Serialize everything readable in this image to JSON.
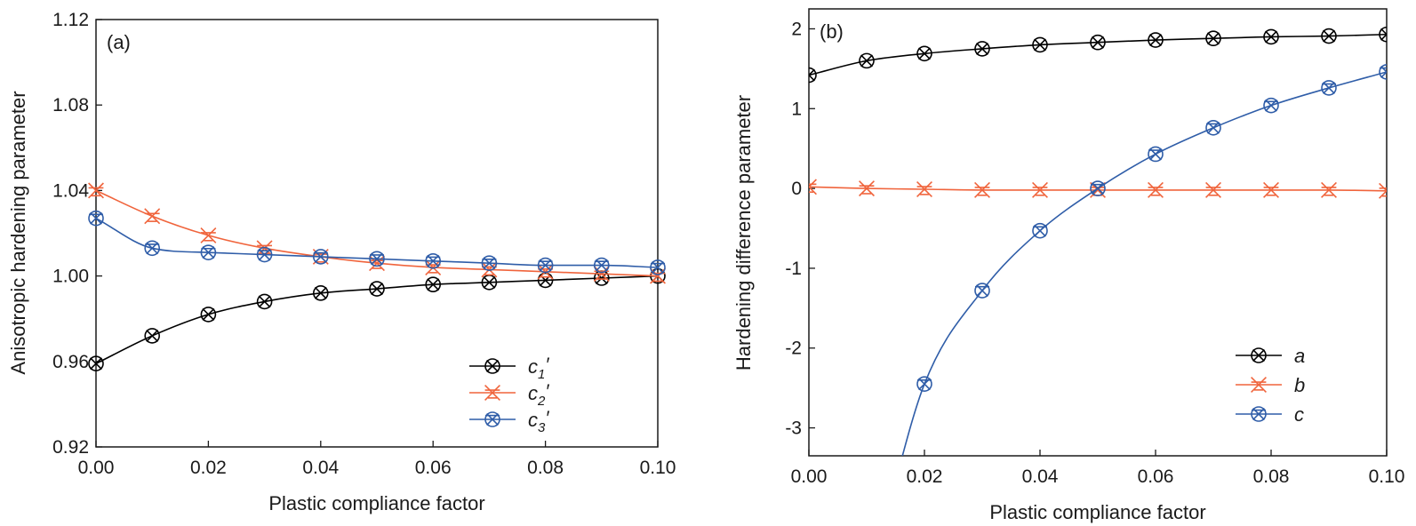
{
  "chart_data": [
    {
      "type": "line",
      "panel_label": "(a)",
      "xlabel": "Plastic compliance factor",
      "ylabel": "Anisotropic hardening parameter",
      "xlim": [
        0,
        0.1
      ],
      "ylim": [
        0.92,
        1.12
      ],
      "x_ticks": [
        "0.00",
        "0.02",
        "0.04",
        "0.06",
        "0.08",
        "0.10"
      ],
      "y_ticks": [
        "0.92",
        "0.96",
        "1.00",
        "1.04",
        "1.08",
        "1.12"
      ],
      "legend_position": "bottom-right",
      "x": [
        0.0,
        0.01,
        0.02,
        0.03,
        0.04,
        0.05,
        0.06,
        0.07,
        0.08,
        0.09,
        0.1
      ],
      "series": [
        {
          "name": "c",
          "sub": "1",
          "prime": "′",
          "color": "#000000",
          "marker": "circle-x",
          "values": [
            0.959,
            0.972,
            0.982,
            0.988,
            0.992,
            0.994,
            0.996,
            0.997,
            0.998,
            0.999,
            1.0
          ]
        },
        {
          "name": "c",
          "sub": "2",
          "prime": "′",
          "color": "#f0643c",
          "marker": "star-x",
          "values": [
            1.04,
            1.028,
            1.019,
            1.013,
            1.009,
            1.006,
            1.004,
            1.003,
            1.002,
            1.001,
            1.0
          ]
        },
        {
          "name": "c",
          "sub": "3",
          "prime": "′",
          "color": "#2f5da8",
          "marker": "circle-x-bar",
          "values": [
            1.027,
            1.013,
            1.011,
            1.01,
            1.009,
            1.008,
            1.007,
            1.006,
            1.005,
            1.005,
            1.004
          ]
        }
      ]
    },
    {
      "type": "line",
      "panel_label": "(b)",
      "xlabel": "Plastic compliance factor",
      "ylabel": "Hardening difference parameter",
      "xlim": [
        0,
        0.1
      ],
      "ylim": [
        -3.35,
        2.25
      ],
      "x_ticks": [
        "0.00",
        "0.02",
        "0.04",
        "0.06",
        "0.08",
        "0.10"
      ],
      "y_ticks": [
        "-3",
        "-2",
        "-1",
        "0",
        "1",
        "2"
      ],
      "legend_position": "bottom-right",
      "x": [
        0.0,
        0.01,
        0.02,
        0.03,
        0.04,
        0.05,
        0.06,
        0.07,
        0.08,
        0.09,
        0.1
      ],
      "series": [
        {
          "name": "a",
          "color": "#000000",
          "marker": "circle-x",
          "values": [
            1.42,
            1.6,
            1.69,
            1.75,
            1.8,
            1.83,
            1.86,
            1.88,
            1.9,
            1.91,
            1.93
          ]
        },
        {
          "name": "b",
          "color": "#f0643c",
          "marker": "star-x",
          "values": [
            0.02,
            0.0,
            -0.01,
            -0.02,
            -0.02,
            -0.02,
            -0.02,
            -0.02,
            -0.02,
            -0.02,
            -0.03
          ]
        },
        {
          "name": "c",
          "color": "#2f5da8",
          "marker": "circle-x-bar",
          "values": [
            null,
            null,
            -2.45,
            -1.28,
            -0.53,
            0.0,
            0.43,
            0.76,
            1.04,
            1.26,
            1.46
          ]
        }
      ]
    }
  ]
}
